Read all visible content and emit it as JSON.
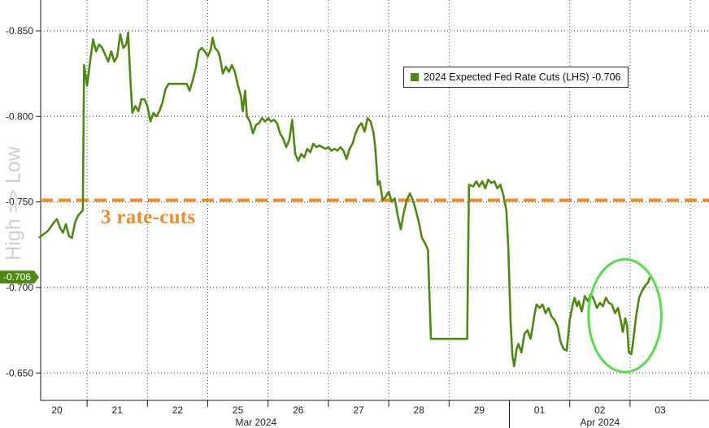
{
  "chart_data": {
    "type": "line",
    "legend": {
      "label": "2024 Expected Fed Rate Cuts (LHS)",
      "value": "-0.706",
      "placement": "top-right"
    },
    "y_axis_label": "High => Low",
    "y_ticks": [
      "-0.850",
      "-0.800",
      "-0.750",
      "-0.700",
      "-0.650"
    ],
    "ylim": [
      -0.634,
      -0.868
    ],
    "x_tick_labels": [
      "20",
      "21",
      "22",
      "25",
      "26",
      "27",
      "28",
      "29",
      "01",
      "02",
      "03"
    ],
    "x_month_labels": [
      "Mar 2024",
      "Apr 2024"
    ],
    "grid": true,
    "reference_line": {
      "value": -0.751,
      "label": "3 rate-cuts",
      "color": "#f28c28",
      "style": "dashed"
    },
    "current_value": "-0.706",
    "highlight": "ellipse around latest values",
    "series": [
      {
        "name": "2024 Expected Fed Rate Cuts (LHS)",
        "color": "#4f8a10",
        "points": [
          [
            -0.3,
            -0.729
          ],
          [
            -0.15,
            -0.733
          ],
          [
            -0.05,
            -0.738
          ],
          [
            0.0,
            -0.74
          ],
          [
            0.05,
            -0.735
          ],
          [
            0.1,
            -0.732
          ],
          [
            0.15,
            -0.737
          ],
          [
            0.2,
            -0.73
          ],
          [
            0.25,
            -0.729
          ],
          [
            0.3,
            -0.738
          ],
          [
            0.35,
            -0.742
          ],
          [
            0.4,
            -0.744
          ],
          [
            0.43,
            -0.745
          ],
          [
            0.45,
            -0.83
          ],
          [
            0.5,
            -0.818
          ],
          [
            0.55,
            -0.832
          ],
          [
            0.6,
            -0.845
          ],
          [
            0.65,
            -0.838
          ],
          [
            0.7,
            -0.842
          ],
          [
            0.75,
            -0.84
          ],
          [
            0.8,
            -0.836
          ],
          [
            0.85,
            -0.832
          ],
          [
            0.9,
            -0.838
          ],
          [
            0.95,
            -0.832
          ],
          [
            1.0,
            -0.835
          ],
          [
            1.05,
            -0.848
          ],
          [
            1.1,
            -0.84
          ],
          [
            1.15,
            -0.842
          ],
          [
            1.18,
            -0.849
          ],
          [
            1.22,
            -0.82
          ],
          [
            1.25,
            -0.802
          ],
          [
            1.3,
            -0.806
          ],
          [
            1.35,
            -0.803
          ],
          [
            1.4,
            -0.81
          ],
          [
            1.45,
            -0.81
          ],
          [
            1.5,
            -0.806
          ],
          [
            1.55,
            -0.797
          ],
          [
            1.6,
            -0.802
          ],
          [
            1.65,
            -0.8
          ],
          [
            1.7,
            -0.803
          ],
          [
            1.75,
            -0.808
          ],
          [
            1.8,
            -0.816
          ],
          [
            1.85,
            -0.819
          ],
          [
            2.0,
            -0.819
          ],
          [
            2.15,
            -0.819
          ],
          [
            2.2,
            -0.815
          ],
          [
            2.25,
            -0.821
          ],
          [
            2.3,
            -0.828
          ],
          [
            2.35,
            -0.838
          ],
          [
            2.4,
            -0.84
          ],
          [
            2.45,
            -0.838
          ],
          [
            2.5,
            -0.835
          ],
          [
            2.55,
            -0.839
          ],
          [
            2.58,
            -0.846
          ],
          [
            2.62,
            -0.84
          ],
          [
            2.67,
            -0.838
          ],
          [
            2.7,
            -0.835
          ],
          [
            2.75,
            -0.825
          ],
          [
            2.8,
            -0.829
          ],
          [
            2.85,
            -0.826
          ],
          [
            2.9,
            -0.83
          ],
          [
            2.95,
            -0.826
          ],
          [
            3.0,
            -0.818
          ],
          [
            3.05,
            -0.812
          ],
          [
            3.08,
            -0.803
          ],
          [
            3.12,
            -0.815
          ],
          [
            3.15,
            -0.8
          ],
          [
            3.2,
            -0.797
          ],
          [
            3.25,
            -0.79
          ],
          [
            3.3,
            -0.795
          ],
          [
            3.35,
            -0.796
          ],
          [
            3.4,
            -0.799
          ],
          [
            3.45,
            -0.797
          ],
          [
            3.5,
            -0.799
          ],
          [
            3.55,
            -0.797
          ],
          [
            3.6,
            -0.798
          ],
          [
            3.65,
            -0.796
          ],
          [
            3.7,
            -0.79
          ],
          [
            3.75,
            -0.787
          ],
          [
            3.8,
            -0.782
          ],
          [
            3.85,
            -0.786
          ],
          [
            3.9,
            -0.798
          ],
          [
            3.95,
            -0.778
          ],
          [
            4.0,
            -0.774
          ],
          [
            4.05,
            -0.778
          ],
          [
            4.1,
            -0.776
          ],
          [
            4.15,
            -0.781
          ],
          [
            4.2,
            -0.779
          ],
          [
            4.25,
            -0.784
          ],
          [
            4.3,
            -0.782
          ],
          [
            4.35,
            -0.783
          ],
          [
            4.45,
            -0.781
          ],
          [
            4.5,
            -0.782
          ],
          [
            4.55,
            -0.78
          ],
          [
            4.6,
            -0.781
          ],
          [
            4.65,
            -0.78
          ],
          [
            4.7,
            -0.782
          ],
          [
            4.75,
            -0.78
          ],
          [
            4.8,
            -0.775
          ],
          [
            4.85,
            -0.781
          ],
          [
            4.9,
            -0.784
          ],
          [
            4.95,
            -0.79
          ],
          [
            5.0,
            -0.794
          ],
          [
            5.05,
            -0.796
          ],
          [
            5.1,
            -0.791
          ],
          [
            5.15,
            -0.799
          ],
          [
            5.2,
            -0.797
          ],
          [
            5.25,
            -0.79
          ],
          [
            5.28,
            -0.78
          ],
          [
            5.32,
            -0.76
          ],
          [
            5.35,
            -0.762
          ],
          [
            5.4,
            -0.751
          ],
          [
            5.45,
            -0.753
          ],
          [
            5.5,
            -0.756
          ],
          [
            5.55,
            -0.75
          ],
          [
            5.6,
            -0.752
          ],
          [
            5.62,
            -0.748
          ],
          [
            5.65,
            -0.742
          ],
          [
            5.7,
            -0.734
          ],
          [
            5.75,
            -0.744
          ],
          [
            5.8,
            -0.751
          ],
          [
            5.85,
            -0.755
          ],
          [
            5.9,
            -0.751
          ],
          [
            5.95,
            -0.745
          ],
          [
            6.0,
            -0.738
          ],
          [
            6.05,
            -0.729
          ],
          [
            6.1,
            -0.726
          ],
          [
            6.15,
            -0.722
          ],
          [
            6.2,
            -0.67
          ],
          [
            6.5,
            -0.67
          ],
          [
            6.75,
            -0.67
          ],
          [
            6.8,
            -0.67
          ],
          [
            6.83,
            -0.76
          ],
          [
            6.9,
            -0.759
          ],
          [
            6.95,
            -0.762
          ],
          [
            7.0,
            -0.759
          ],
          [
            7.05,
            -0.762
          ],
          [
            7.1,
            -0.758
          ],
          [
            7.15,
            -0.763
          ],
          [
            7.2,
            -0.761
          ],
          [
            7.25,
            -0.762
          ],
          [
            7.3,
            -0.758
          ],
          [
            7.35,
            -0.76
          ],
          [
            7.4,
            -0.754
          ],
          [
            7.45,
            -0.745
          ],
          [
            7.48,
            -0.725
          ],
          [
            7.52,
            -0.68
          ],
          [
            7.55,
            -0.66
          ],
          [
            7.58,
            -0.654
          ],
          [
            7.62,
            -0.664
          ],
          [
            7.65,
            -0.667
          ],
          [
            7.7,
            -0.662
          ],
          [
            7.75,
            -0.673
          ],
          [
            7.8,
            -0.675
          ],
          [
            7.85,
            -0.67
          ],
          [
            7.88,
            -0.676
          ],
          [
            7.92,
            -0.685
          ],
          [
            7.95,
            -0.69
          ],
          [
            8.0,
            -0.688
          ],
          [
            8.05,
            -0.69
          ],
          [
            8.1,
            -0.685
          ],
          [
            8.15,
            -0.688
          ],
          [
            8.2,
            -0.683
          ],
          [
            8.25,
            -0.681
          ],
          [
            8.3,
            -0.677
          ],
          [
            8.35,
            -0.668
          ],
          [
            8.4,
            -0.664
          ],
          [
            8.45,
            -0.663
          ],
          [
            8.5,
            -0.681
          ],
          [
            8.55,
            -0.69
          ],
          [
            8.58,
            -0.694
          ],
          [
            8.62,
            -0.689
          ],
          [
            8.65,
            -0.692
          ],
          [
            8.7,
            -0.686
          ],
          [
            8.75,
            -0.695
          ],
          [
            8.8,
            -0.692
          ],
          [
            8.85,
            -0.696
          ],
          [
            8.9,
            -0.693
          ],
          [
            8.95,
            -0.688
          ],
          [
            9.0,
            -0.691
          ],
          [
            9.05,
            -0.689
          ],
          [
            9.1,
            -0.694
          ],
          [
            9.15,
            -0.691
          ],
          [
            9.2,
            -0.69
          ],
          [
            9.25,
            -0.685
          ],
          [
            9.3,
            -0.688
          ],
          [
            9.35,
            -0.68
          ],
          [
            9.38,
            -0.674
          ],
          [
            9.42,
            -0.682
          ],
          [
            9.45,
            -0.678
          ],
          [
            9.48,
            -0.662
          ],
          [
            9.52,
            -0.661
          ],
          [
            9.55,
            -0.668
          ],
          [
            9.6,
            -0.683
          ],
          [
            9.65,
            -0.694
          ],
          [
            9.7,
            -0.698
          ],
          [
            9.75,
            -0.701
          ],
          [
            9.8,
            -0.703
          ],
          [
            9.83,
            -0.706
          ]
        ]
      }
    ]
  }
}
